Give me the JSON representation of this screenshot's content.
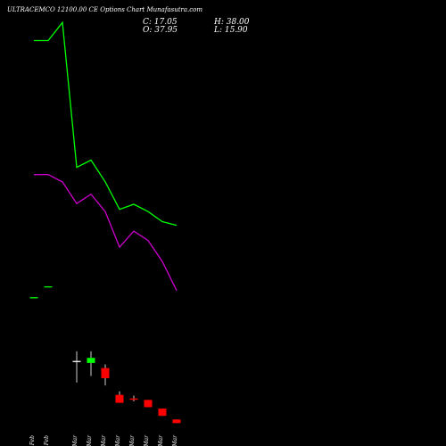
{
  "title": "ULTRACEMCO 12100.00 CE Options Chart Munafasutra.com",
  "ohlc": {
    "close": "C: 17.05",
    "open": "O: 37.95",
    "high": "H: 38.00",
    "low": "L: 15.90"
  },
  "chart_data": {
    "type": "candlestick",
    "background": "#000000",
    "dates": [
      "27 Feb",
      "28 Feb",
      "01 Mar",
      "04 Mar",
      "05 Mar",
      "06 Mar",
      "07 Mar",
      "08 Mar",
      "11 Mar",
      "12 Mar",
      "13 Mar"
    ],
    "tick_labels": [
      "27 Feb",
      "28 Feb",
      "04 Mar",
      "05 Mar",
      "06 Mar",
      "07 Mar",
      "08 Mar",
      "11 Mar",
      "12 Mar",
      "13 Mar"
    ],
    "candles": [
      {
        "date": "27 Feb",
        "open": 145,
        "high": 145,
        "low": 145,
        "close": 145
      },
      {
        "date": "28 Feb",
        "open": 160,
        "high": 160,
        "low": 160,
        "close": 160
      },
      {
        "date": "04 Mar",
        "open": 57,
        "high": 71,
        "low": 28,
        "close": 57
      },
      {
        "date": "05 Mar",
        "open": 55,
        "high": 71,
        "low": 37,
        "close": 62
      },
      {
        "date": "06 Mar",
        "open": 48,
        "high": 53,
        "low": 24,
        "close": 34
      },
      {
        "date": "07 Mar",
        "open": 11,
        "high": 16,
        "low": 0,
        "close": 0
      },
      {
        "date": "08 Mar",
        "open": 6,
        "high": 10,
        "low": 2,
        "close": 5
      },
      {
        "date": "11 Mar",
        "open": 4,
        "high": 4,
        "low": -6,
        "close": -6
      },
      {
        "date": "12 Mar",
        "open": -8,
        "high": -8,
        "low": -18,
        "close": -18
      },
      {
        "date": "13 Mar",
        "open": -23,
        "high": -23,
        "low": -28,
        "close": -28
      }
    ],
    "series": [
      {
        "color": "#00ff00",
        "points": [
          {
            "date": "27 Feb",
            "value": 500
          },
          {
            "date": "28 Feb",
            "value": 500
          },
          {
            "date": "01 Mar",
            "value": 525
          },
          {
            "date": "04 Mar",
            "value": 325
          },
          {
            "date": "05 Mar",
            "value": 335
          },
          {
            "date": "06 Mar",
            "value": 305
          },
          {
            "date": "07 Mar",
            "value": 267
          },
          {
            "date": "08 Mar",
            "value": 274
          },
          {
            "date": "11 Mar",
            "value": 264
          },
          {
            "date": "12 Mar",
            "value": 250
          },
          {
            "date": "13 Mar",
            "value": 245
          }
        ]
      },
      {
        "color": "#cc00cc",
        "points": [
          {
            "date": "27 Feb",
            "value": 315
          },
          {
            "date": "28 Feb",
            "value": 315
          },
          {
            "date": "01 Mar",
            "value": 305
          },
          {
            "date": "04 Mar",
            "value": 275
          },
          {
            "date": "05 Mar",
            "value": 288
          },
          {
            "date": "06 Mar",
            "value": 264
          },
          {
            "date": "07 Mar",
            "value": 215
          },
          {
            "date": "08 Mar",
            "value": 237
          },
          {
            "date": "11 Mar",
            "value": 224
          },
          {
            "date": "12 Mar",
            "value": 195
          },
          {
            "date": "13 Mar",
            "value": 155
          }
        ]
      }
    ],
    "ylim": [
      -35,
      556
    ],
    "colors": {
      "up": "#00ff00",
      "down": "#ff0000",
      "doji": "#ffffff",
      "wick": "#cccccc",
      "axis_text": "#ffffff"
    },
    "grid": false,
    "legend": "none"
  }
}
